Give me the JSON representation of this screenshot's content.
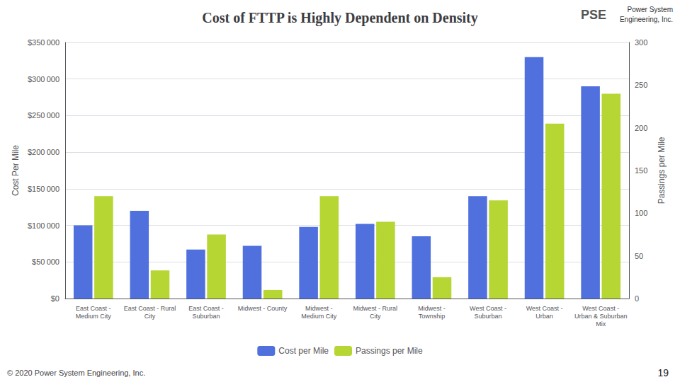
{
  "chart_data": {
    "type": "bar",
    "title": "Cost of FTTP is Highly Dependent on Density",
    "categories": [
      "East Coast -\nMedium City",
      "East Coast - Rural\nCity",
      "East Coast -\nSuburban",
      "Midwest - County",
      "Midwest -\nMedium City",
      "Midwest - Rural\nCity",
      "Midwest -\nTownship",
      "West Coast -\nSuburban",
      "West Coast -\nUrban",
      "West Coast -\nUrban & Suburban\nMix"
    ],
    "series": [
      {
        "name": "Cost per Mile",
        "values": [
          100000,
          120000,
          67000,
          72000,
          98000,
          102000,
          85000,
          140000,
          330000,
          290000
        ]
      },
      {
        "name": "Passings per Mile",
        "axis": "y2",
        "values": [
          120,
          33,
          75,
          10,
          120,
          90,
          25,
          115,
          205,
          240
        ]
      }
    ],
    "ylabel": "Cost Per Mile",
    "y2label": "Passings per Mile",
    "ylim": [
      0,
      350000
    ],
    "yticks": [
      {
        "value": 0,
        "label": "$0"
      },
      {
        "value": 50000,
        "label": "$50 000"
      },
      {
        "value": 100000,
        "label": "$100 000"
      },
      {
        "value": 150000,
        "label": "$150 000"
      },
      {
        "value": 200000,
        "label": "$200 000"
      },
      {
        "value": 250000,
        "label": "$250 000"
      },
      {
        "value": 300000,
        "label": "$300 000"
      },
      {
        "value": 350000,
        "label": "$350 000"
      }
    ],
    "y2lim": [
      0,
      300
    ],
    "y2ticks": [
      0,
      50,
      100,
      150,
      200,
      250,
      300
    ],
    "grid": true,
    "legend": "bottom",
    "annotations": [
      "© 2020 Power System Engineering, Inc.",
      "19",
      "PSE",
      "Power System",
      "Engineering, Inc."
    ]
  }
}
